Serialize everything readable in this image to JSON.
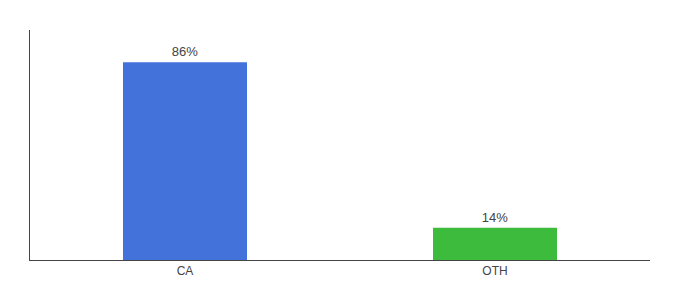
{
  "chart_data": {
    "type": "bar",
    "categories": [
      "CA",
      "OTH"
    ],
    "values": [
      86,
      14
    ],
    "value_labels": [
      "86%",
      "14%"
    ],
    "colors": [
      "#4472db",
      "#3dbb3d"
    ],
    "ylim": [
      0,
      100
    ],
    "yticks": [],
    "grid": false,
    "data_labels": true,
    "tick_labels": "x"
  }
}
